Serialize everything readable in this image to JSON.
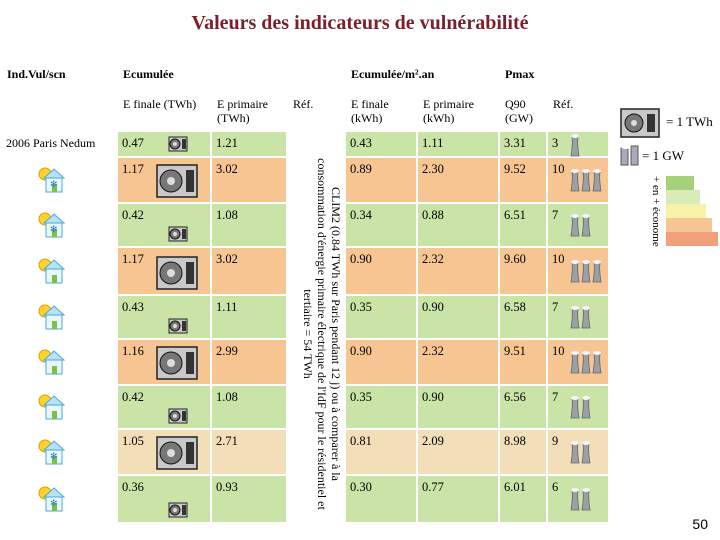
{
  "title": "Valeurs des indicateurs de vulnérabilité",
  "colors": {
    "green": "#c9e4a6",
    "orange": "#f6c592",
    "tan": "#f2dfb7",
    "yellow": "#f6f2a7",
    "title": "#7a1f2b"
  },
  "header": {
    "indvul": "Ind.Vul/scn",
    "ecumulee": "Ecumulée",
    "ecumulee_m2": "Ecumulée/m².an",
    "pmax": "Pmax",
    "efinale_twh": "E finale (TWh)",
    "eprimaire_twh": "E primaire (TWh)",
    "ref1": "Réf.",
    "efinale_kwh": "E finale (kWh)",
    "eprimaire_kwh": "E primaire (kWh)",
    "q90": "Q90 (GW)",
    "ref2": "Réf."
  },
  "first_row_label": "2006 Paris Nedum",
  "vertical_note": "CLIM2 (0.84 TWh sur Paris pendant 12 j) ou à comparer à la consommation d'énergie primaire électrique de l'IdF pour le résidentiel et tertiaire = 54 TWh",
  "rows": [
    {
      "ef": "0.47",
      "ep": "1.21",
      "efm": "0.43",
      "epm": "1.11",
      "q90": "3.31",
      "ref": "3",
      "icon": "none",
      "unit_size": "small",
      "color": "green"
    },
    {
      "ef": "1.17",
      "ep": "3.02",
      "efm": "0.89",
      "epm": "2.30",
      "q90": "9.52",
      "ref": "10",
      "icon": "sun-snow-house-icon",
      "unit_size": "large",
      "color": "orange"
    },
    {
      "ef": "0.42",
      "ep": "1.08",
      "efm": "0.34",
      "epm": "0.88",
      "q90": "6.51",
      "ref": "7",
      "icon": "sun-snow-house-icon",
      "unit_size": "small",
      "color": "green"
    },
    {
      "ef": "1.17",
      "ep": "3.02",
      "efm": "0.90",
      "epm": "2.32",
      "q90": "9.60",
      "ref": "10",
      "icon": "sun-house-icon",
      "unit_size": "large",
      "color": "orange"
    },
    {
      "ef": "0.43",
      "ep": "1.11",
      "efm": "0.35",
      "epm": "0.90",
      "q90": "6.58",
      "ref": "7",
      "icon": "sun-house-icon",
      "unit_size": "small",
      "color": "green"
    },
    {
      "ef": "1.16",
      "ep": "2.99",
      "efm": "0.90",
      "epm": "2.32",
      "q90": "9.51",
      "ref": "10",
      "icon": "sun-house-icon",
      "unit_size": "large",
      "color": "orange"
    },
    {
      "ef": "0.42",
      "ep": "1.08",
      "efm": "0.35",
      "epm": "0.90",
      "q90": "6.56",
      "ref": "7",
      "icon": "sun-house-icon",
      "unit_size": "small",
      "color": "green"
    },
    {
      "ef": "1.05",
      "ep": "2.71",
      "efm": "0.81",
      "epm": "2.09",
      "q90": "8.98",
      "ref": "9",
      "icon": "sun-snow-house-icon",
      "unit_size": "large",
      "color": "tan"
    },
    {
      "ef": "0.36",
      "ep": "0.93",
      "efm": "0.30",
      "epm": "0.77",
      "q90": "6.01",
      "ref": "6",
      "icon": "sun-snow-house-icon",
      "unit_size": "small",
      "color": "green"
    }
  ],
  "legend": {
    "twh": "= 1 TWh",
    "gw": "= 1 GW",
    "scale_label": "+ en + économe"
  },
  "page_number": "50"
}
